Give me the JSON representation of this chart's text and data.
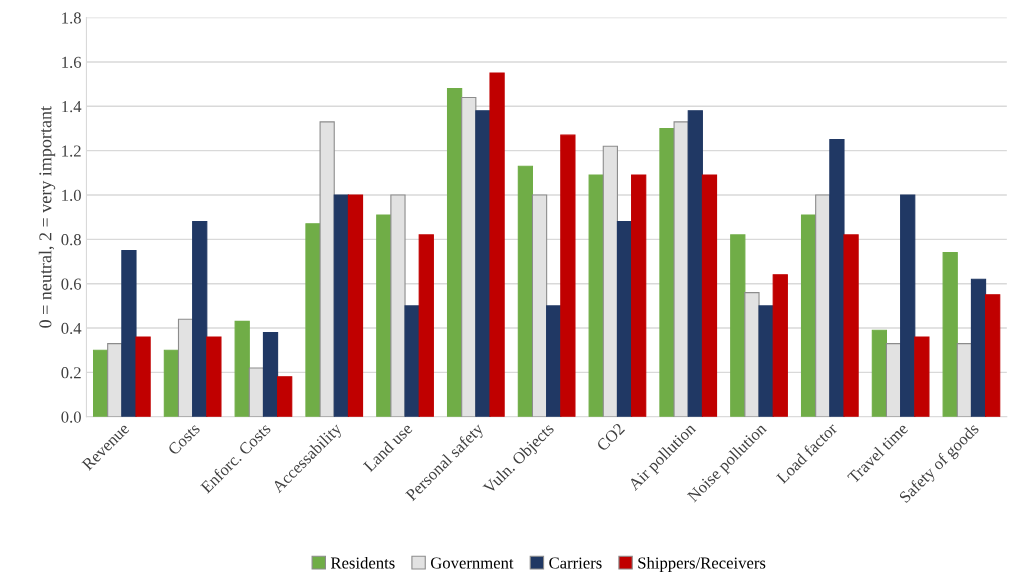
{
  "chart_data": {
    "type": "bar",
    "ylabel": "0 = neutral, 2 = very important",
    "categories": [
      "Revenue",
      "Costs",
      "Enforc. Costs",
      "Accessability",
      "Land use",
      "Personal safety",
      "Vuln. Objects",
      "CO2",
      "Air pollution",
      "Noise pollution",
      "Load factor",
      "Travel time",
      "Safety of goods"
    ],
    "series": [
      {
        "name": "Residents",
        "color": "#70ad47",
        "values": [
          0.3,
          0.3,
          0.43,
          0.87,
          0.91,
          1.48,
          1.13,
          1.09,
          1.3,
          0.82,
          0.91,
          0.39,
          0.74
        ]
      },
      {
        "name": "Government",
        "color": "#e2e2e2",
        "values": [
          0.33,
          0.44,
          0.22,
          1.33,
          1.0,
          1.44,
          1.0,
          1.22,
          1.33,
          0.56,
          1.0,
          0.33,
          0.33
        ]
      },
      {
        "name": "Carriers",
        "color": "#203864",
        "values": [
          0.75,
          0.88,
          0.38,
          1.0,
          0.5,
          1.38,
          0.5,
          0.88,
          1.38,
          0.5,
          1.25,
          1.0,
          0.62
        ]
      },
      {
        "name": "Shippers/Receivers",
        "color": "#c00000",
        "values": [
          0.36,
          0.36,
          0.18,
          1.0,
          0.82,
          1.55,
          1.27,
          1.09,
          1.09,
          0.64,
          0.82,
          0.36,
          0.55
        ]
      }
    ],
    "ylim": [
      0,
      1.8
    ],
    "yticks": [
      {
        "value": 0,
        "label": "0.0"
      },
      {
        "value": 0.2,
        "label": "0.2"
      },
      {
        "value": 0.4,
        "label": "0.4"
      },
      {
        "value": 0.6,
        "label": "0.6"
      },
      {
        "value": 0.8,
        "label": "0.8"
      },
      {
        "value": 1.0,
        "label": "1.0"
      },
      {
        "value": 1.2,
        "label": "1.2"
      },
      {
        "value": 1.4,
        "label": "1.4"
      },
      {
        "value": 1.6,
        "label": "1.6"
      },
      {
        "value": 1.8,
        "label": "1.8"
      }
    ],
    "grid": "y",
    "legend": "bottom"
  }
}
